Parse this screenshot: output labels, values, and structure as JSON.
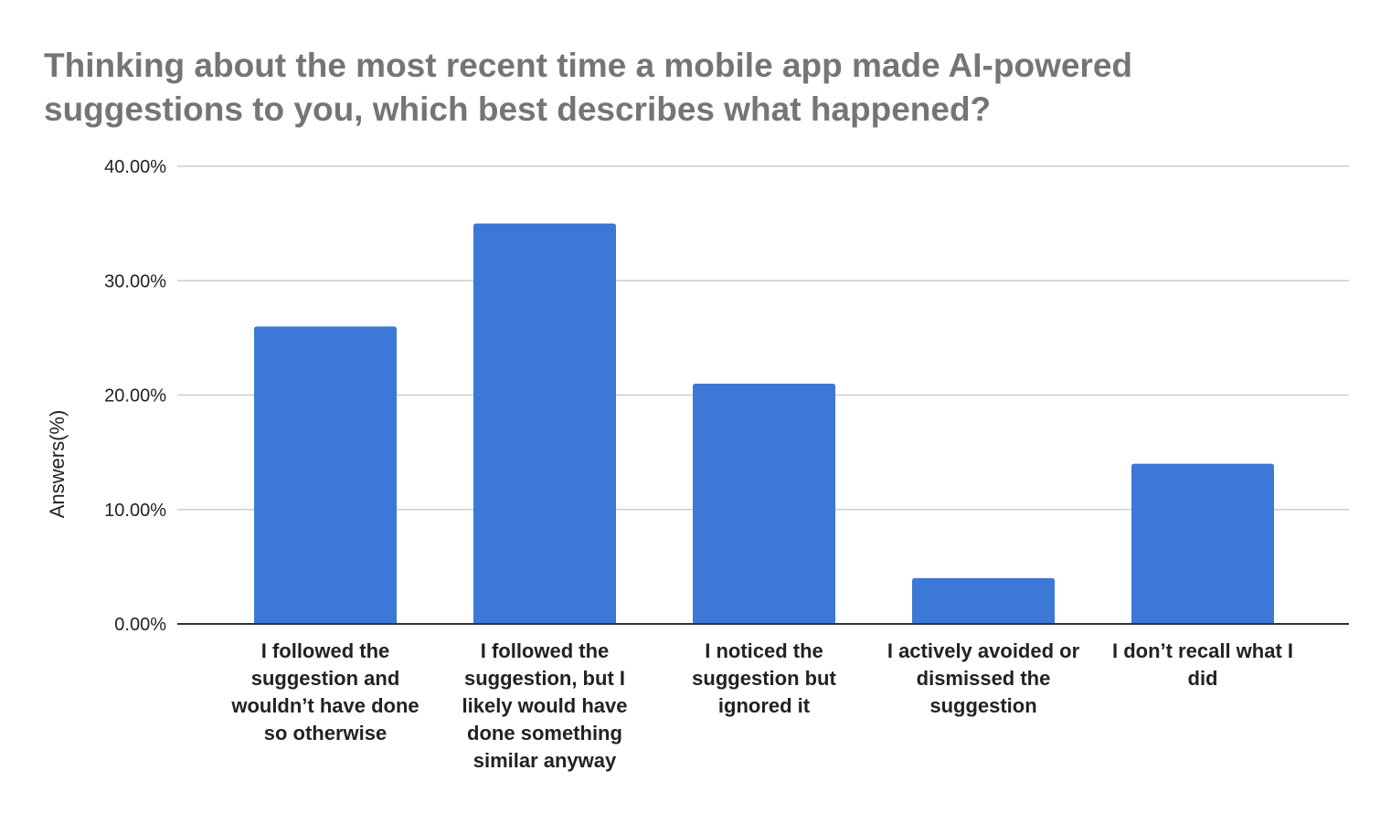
{
  "chart_data": {
    "type": "bar",
    "title": "Thinking about the most recent time a mobile app made AI-powered suggestions to you, which best describes what happened?",
    "ylabel": "Answers(%)",
    "xlabel": "",
    "ylim": [
      0,
      40
    ],
    "yticks": [
      0,
      10,
      20,
      30,
      40
    ],
    "ytick_labels": [
      "0.00%",
      "10.00%",
      "20.00%",
      "30.00%",
      "40.00%"
    ],
    "grid": true,
    "bar_color": "#3c78d8",
    "categories": [
      "I followed the suggestion and wouldn’t have done so otherwise",
      "I followed the suggestion, but I likely would have done something similar anyway",
      "I noticed the suggestion but ignored it",
      "I actively avoided or dismissed the suggestion",
      "I don’t recall what I did"
    ],
    "category_lines": [
      [
        "I followed the",
        "suggestion and",
        "wouldn’t have done",
        "so otherwise"
      ],
      [
        "I followed the",
        "suggestion, but I",
        "likely would have",
        "done something",
        "similar anyway"
      ],
      [
        "I noticed the",
        "suggestion but",
        "ignored it"
      ],
      [
        "I actively avoided or",
        "dismissed the",
        "suggestion"
      ],
      [
        "I don’t recall what I",
        "did"
      ]
    ],
    "values": [
      26,
      35,
      21,
      4,
      14
    ]
  }
}
